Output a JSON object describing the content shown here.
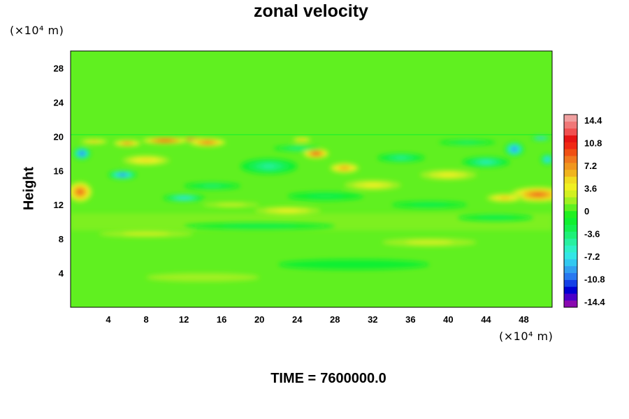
{
  "chart_data": {
    "type": "heatmap",
    "title": "zonal velocity",
    "ylabel": "Height",
    "xlabel": "",
    "x_unit": "(×10⁴ m)",
    "y_unit": "(×10⁴ m)",
    "x_ticks": [
      4,
      8,
      12,
      16,
      20,
      24,
      28,
      32,
      36,
      40,
      44,
      48
    ],
    "y_ticks": [
      4,
      8,
      12,
      16,
      20,
      24,
      28
    ],
    "xlim": [
      0,
      51
    ],
    "ylim": [
      0,
      30
    ],
    "colorbar": {
      "ticks": [
        14.4,
        10.8,
        7.2,
        3.6,
        0,
        -3.6,
        -7.2,
        -10.8,
        -14.4
      ],
      "range": [
        -15.3,
        15.3
      ],
      "colors": [
        "#8a0ab0",
        "#4b00c8",
        "#0000d2",
        "#1440e6",
        "#2878f0",
        "#32a0f0",
        "#32c8f0",
        "#32e6e6",
        "#2ef0c8",
        "#28f0a0",
        "#1ef078",
        "#14f050",
        "#10f030",
        "#20f020",
        "#60f020",
        "#a0f020",
        "#d2f020",
        "#f0f020",
        "#f0dc20",
        "#f0b41e",
        "#f0961e",
        "#f0781e",
        "#f05014",
        "#f02814",
        "#e61414",
        "#f05050",
        "#f07878",
        "#f0a0a0"
      ]
    },
    "blobs": [
      {
        "x": 13,
        "y": 19.6,
        "rx": 2.0,
        "ry": 0.3,
        "v": 14.0
      },
      {
        "x": 10,
        "y": 19.5,
        "rx": 2.5,
        "ry": 0.4,
        "v": 11.0
      },
      {
        "x": 14.5,
        "y": 19.3,
        "rx": 2.0,
        "ry": 0.5,
        "v": 9.0
      },
      {
        "x": 6,
        "y": 19.2,
        "rx": 1.5,
        "ry": 0.4,
        "v": 8.0
      },
      {
        "x": 26,
        "y": 18.0,
        "rx": 1.4,
        "ry": 0.6,
        "v": 10.0
      },
      {
        "x": 29,
        "y": 16.3,
        "rx": 1.6,
        "ry": 0.6,
        "v": 7.0
      },
      {
        "x": 24.5,
        "y": 19.6,
        "rx": 1.0,
        "ry": 0.3,
        "v": 6.0
      },
      {
        "x": 1.2,
        "y": 18.0,
        "rx": 0.9,
        "ry": 0.7,
        "v": -12.0
      },
      {
        "x": 5.5,
        "y": 15.5,
        "rx": 1.5,
        "ry": 0.5,
        "v": -11.0
      },
      {
        "x": 12,
        "y": 12.8,
        "rx": 2.2,
        "ry": 0.4,
        "v": -8.0
      },
      {
        "x": 47,
        "y": 18.5,
        "rx": 1.0,
        "ry": 0.8,
        "v": -11.0
      },
      {
        "x": 44,
        "y": 17.0,
        "rx": 2.5,
        "ry": 0.6,
        "v": -6.0
      },
      {
        "x": 49.8,
        "y": 19.8,
        "rx": 1.0,
        "ry": 0.25,
        "v": -10.0
      },
      {
        "x": 50.5,
        "y": 17.3,
        "rx": 0.7,
        "ry": 0.6,
        "v": -9.0
      },
      {
        "x": 1.0,
        "y": 13.5,
        "rx": 1.3,
        "ry": 1.2,
        "v": 9.0
      },
      {
        "x": 49.5,
        "y": 13.2,
        "rx": 3.0,
        "ry": 0.9,
        "v": 9.0
      },
      {
        "x": 46,
        "y": 12.8,
        "rx": 2.0,
        "ry": 0.5,
        "v": 6.0
      },
      {
        "x": 21,
        "y": 16.5,
        "rx": 3.0,
        "ry": 0.9,
        "v": -4.5
      },
      {
        "x": 35,
        "y": 17.5,
        "rx": 2.5,
        "ry": 0.5,
        "v": -4.0
      },
      {
        "x": 8,
        "y": 17.2,
        "rx": 2.5,
        "ry": 0.6,
        "v": 4.5
      },
      {
        "x": 23,
        "y": 11.3,
        "rx": 3.5,
        "ry": 0.5,
        "v": 3.8
      },
      {
        "x": 32,
        "y": 14.3,
        "rx": 3.0,
        "ry": 0.6,
        "v": 3.0
      },
      {
        "x": 40,
        "y": 15.5,
        "rx": 3.0,
        "ry": 0.6,
        "v": 2.8
      },
      {
        "x": 38,
        "y": 7.6,
        "rx": 5.0,
        "ry": 0.5,
        "v": 2.4
      },
      {
        "x": 15,
        "y": 14.2,
        "rx": 3.0,
        "ry": 0.4,
        "v": -3.0
      },
      {
        "x": 27,
        "y": 13.0,
        "rx": 4.0,
        "ry": 0.5,
        "v": -2.5
      },
      {
        "x": 38,
        "y": 12.0,
        "rx": 4.0,
        "ry": 0.4,
        "v": -2.5
      },
      {
        "x": 20,
        "y": 9.5,
        "rx": 8.0,
        "ry": 0.4,
        "v": -2.0
      },
      {
        "x": 8,
        "y": 8.6,
        "rx": 5.0,
        "ry": 0.4,
        "v": 2.0
      },
      {
        "x": 30,
        "y": 5.0,
        "rx": 8.0,
        "ry": 0.6,
        "v": -1.6
      },
      {
        "x": 14,
        "y": 3.5,
        "rx": 6.0,
        "ry": 0.5,
        "v": 1.2
      },
      {
        "x": 24,
        "y": 18.6,
        "rx": 2.5,
        "ry": 0.3,
        "v": -4.0
      },
      {
        "x": 2.5,
        "y": 19.4,
        "rx": 1.5,
        "ry": 0.3,
        "v": 5.0
      },
      {
        "x": 42,
        "y": 19.3,
        "rx": 3.0,
        "ry": 0.3,
        "v": -3.0
      },
      {
        "x": 17,
        "y": 12.0,
        "rx": 3.0,
        "ry": 0.3,
        "v": 2.5
      },
      {
        "x": 45,
        "y": 10.5,
        "rx": 4.0,
        "ry": 0.4,
        "v": -2.2
      }
    ]
  },
  "time_display": {
    "label": "TIME =",
    "value": "7600000.0"
  }
}
